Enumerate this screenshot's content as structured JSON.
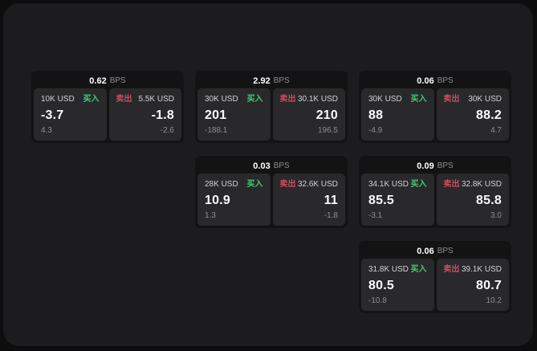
{
  "labels": {
    "bps": "BPS",
    "buy": "买入",
    "sell": "卖出"
  },
  "colors": {
    "backdrop": "#0d0d0e",
    "panel_bg": "#1c1c1e",
    "card_bg": "#131314",
    "tile_bg": "#29292b",
    "buy_green": "#3ecf74",
    "sell_red": "#cf4a63",
    "muted_gray": "#8e8e93",
    "value_white": "#fafafa"
  },
  "cards": [
    {
      "bps": "0.62",
      "buy": {
        "amount": "10K USD",
        "value": "-3.7",
        "sub": "4.3"
      },
      "sell": {
        "amount": "5.5K USD",
        "value": "-1.8",
        "sub": "-2.6"
      }
    },
    {
      "bps": "2.92",
      "buy": {
        "amount": "30K USD",
        "value": "201",
        "sub": "-188.1"
      },
      "sell": {
        "amount": "30.1K USD",
        "value": "210",
        "sub": "196.5"
      }
    },
    {
      "bps": "0.06",
      "buy": {
        "amount": "30K USD",
        "value": "88",
        "sub": "-4.9"
      },
      "sell": {
        "amount": "30K USD",
        "value": "88.2",
        "sub": "4.7"
      }
    },
    {
      "bps": "0.03",
      "buy": {
        "amount": "28K USD",
        "value": "10.9",
        "sub": "1.3"
      },
      "sell": {
        "amount": "32.6K USD",
        "value": "11",
        "sub": "-1.8"
      }
    },
    {
      "bps": "0.09",
      "buy": {
        "amount": "34.1K USD",
        "value": "85.5",
        "sub": "-3.1"
      },
      "sell": {
        "amount": "32.8K USD",
        "value": "85.8",
        "sub": "3.0"
      }
    },
    {
      "bps": "0.06",
      "buy": {
        "amount": "31.8K USD",
        "value": "80.5",
        "sub": "-10.8"
      },
      "sell": {
        "amount": "39.1K USD",
        "value": "80.7",
        "sub": "10.2"
      }
    }
  ]
}
